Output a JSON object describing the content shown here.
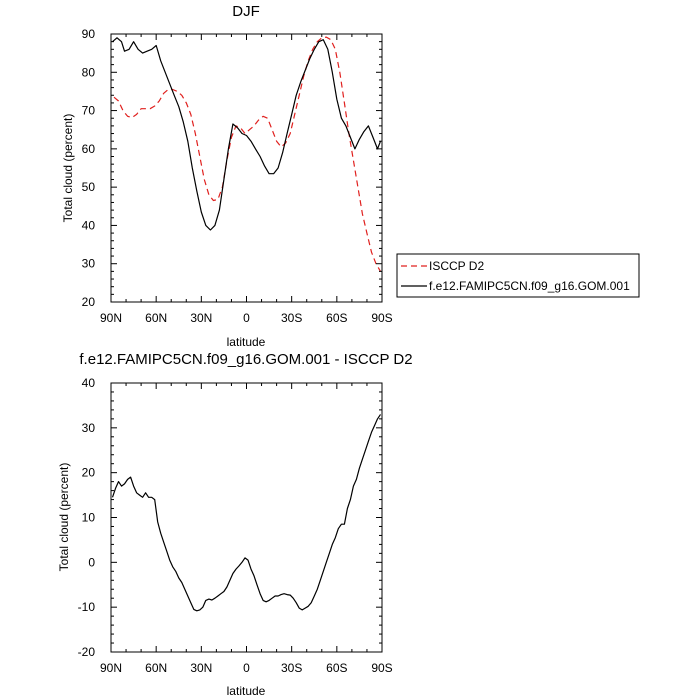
{
  "chart_data": [
    {
      "type": "line",
      "title": "DJF",
      "xlabel": "latitude",
      "ylabel": "Total cloud (percent)",
      "x_ticks": [
        -90,
        -60,
        -30,
        0,
        30,
        60,
        90
      ],
      "x_tick_labels": [
        "90N",
        "60N",
        "30N",
        "0",
        "30S",
        "60S",
        "90S"
      ],
      "ylim": [
        20,
        90
      ],
      "y_ticks": [
        20,
        30,
        40,
        50,
        60,
        70,
        80,
        90
      ],
      "xlim": [
        -90,
        90
      ],
      "legend": [
        "ISCCP D2",
        "f.e12.FAMIPC5CN.f09_g16.GOM.001"
      ],
      "series": [
        {
          "name": "ISCCP D2",
          "color": "#e0201e",
          "dash": true,
          "x": [
            -88,
            -85,
            -82,
            -79,
            -76,
            -73,
            -70,
            -67,
            -64,
            -61,
            -58,
            -55,
            -52,
            -49,
            -46,
            -43,
            -40,
            -37,
            -34,
            -31,
            -28,
            -25,
            -22,
            -19,
            -16,
            -13,
            -10,
            -7,
            -4,
            -1,
            2,
            5,
            8,
            11,
            14,
            17,
            20,
            23,
            26,
            29,
            32,
            35,
            38,
            41,
            44,
            47,
            50,
            53,
            56,
            59,
            62,
            65,
            68,
            71,
            74,
            77,
            80,
            83,
            86,
            89
          ],
          "values": [
            73.5,
            72.5,
            70,
            68.5,
            68.2,
            69,
            70.5,
            70.5,
            70.5,
            71.2,
            72.5,
            74.5,
            75.5,
            75.5,
            75,
            74,
            72,
            69,
            64,
            58,
            52,
            48,
            46.5,
            46.8,
            50,
            57,
            63,
            66,
            65.5,
            64,
            65,
            66,
            67.5,
            68.5,
            68,
            65,
            62,
            60.5,
            61.5,
            64,
            69,
            74,
            79,
            83,
            86,
            88,
            89,
            89.2,
            88.5,
            86,
            80,
            72,
            64,
            57,
            50,
            43,
            38,
            33,
            30,
            28
          ]
        },
        {
          "name": "f.e12.FAMIPC5CN.f09_g16.GOM.001",
          "color": "#000000",
          "dash": false,
          "x": [
            -89,
            -86,
            -83,
            -81,
            -78,
            -75,
            -72,
            -69,
            -66,
            -63,
            -60,
            -57,
            -54,
            -51,
            -48,
            -45,
            -42,
            -39,
            -36,
            -33,
            -30,
            -27,
            -24,
            -21,
            -18,
            -15,
            -12,
            -9,
            -6,
            -3,
            0,
            3,
            6,
            9,
            12,
            15,
            18,
            21,
            24,
            27,
            30,
            33,
            36,
            39,
            42,
            45,
            48,
            51,
            54,
            57,
            60,
            63,
            66,
            69,
            72,
            75,
            78,
            81,
            84,
            87,
            89
          ],
          "values": [
            88,
            89,
            88,
            85.5,
            86,
            88,
            86,
            85,
            85.5,
            86,
            87,
            83,
            80,
            77,
            74,
            71,
            67,
            62,
            55,
            49,
            43.5,
            40,
            38.8,
            40,
            44,
            52,
            60,
            66.5,
            65.5,
            64,
            63.5,
            62,
            60,
            58,
            55.5,
            53.5,
            53.5,
            55,
            59,
            64,
            69,
            74,
            77.5,
            80.5,
            83.5,
            86,
            88,
            88.5,
            86,
            80,
            73,
            68,
            66,
            63,
            60,
            62.5,
            64.5,
            66,
            63,
            60,
            62
          ]
        }
      ]
    },
    {
      "type": "line",
      "title": "f.e12.FAMIPC5CN.f09_g16.GOM.001 - ISCCP D2",
      "xlabel": "latitude",
      "ylabel": "Total cloud (percent)",
      "x_ticks": [
        -90,
        -60,
        -30,
        0,
        30,
        60,
        90
      ],
      "x_tick_labels": [
        "90N",
        "60N",
        "30N",
        "0",
        "30S",
        "60S",
        "90S"
      ],
      "ylim": [
        -20,
        40
      ],
      "y_ticks": [
        -20,
        -10,
        0,
        10,
        20,
        30,
        40
      ],
      "xlim": [
        -90,
        90
      ],
      "series": [
        {
          "name": "f.e12.FAMIPC5CN.f09_g16.GOM.001 - ISCCP D2",
          "color": "#000000",
          "dash": false,
          "x": [
            -89,
            -87,
            -85,
            -83,
            -81,
            -79,
            -77,
            -75,
            -73,
            -71,
            -69,
            -67,
            -65,
            -63,
            -61,
            -59,
            -57,
            -55,
            -53,
            -51,
            -49,
            -47,
            -45,
            -43,
            -41,
            -39,
            -37,
            -35,
            -33,
            -31,
            -29,
            -27,
            -25,
            -23,
            -21,
            -19,
            -17,
            -15,
            -13,
            -11,
            -9,
            -7,
            -5,
            -3,
            -1,
            1,
            3,
            5,
            7,
            9,
            11,
            13,
            15,
            17,
            19,
            21,
            23,
            25,
            27,
            29,
            31,
            33,
            35,
            37,
            39,
            41,
            43,
            45,
            47,
            49,
            51,
            53,
            55,
            57,
            59,
            61,
            63,
            65,
            67,
            69,
            71,
            73,
            75,
            77,
            79,
            81,
            83,
            85,
            87,
            89
          ],
          "values": [
            14.5,
            16.5,
            18,
            17,
            17.5,
            18.5,
            19,
            17,
            15.5,
            15,
            14.5,
            15.5,
            14.5,
            14.5,
            14,
            9,
            6.5,
            4.5,
            2.5,
            0.5,
            -1,
            -2,
            -3.5,
            -4.5,
            -6,
            -7.5,
            -9,
            -10.5,
            -10.8,
            -10.6,
            -10,
            -8.5,
            -8.2,
            -8.4,
            -8,
            -7.5,
            -7,
            -6.5,
            -5.5,
            -4,
            -2.5,
            -1.5,
            -0.8,
            0,
            1,
            0.5,
            -1.5,
            -3,
            -5,
            -7,
            -8.5,
            -8.8,
            -8.5,
            -8,
            -7.5,
            -7.5,
            -7.2,
            -7,
            -7.2,
            -7.3,
            -8,
            -9,
            -10.2,
            -10.6,
            -10.2,
            -9.8,
            -9,
            -7.5,
            -6,
            -4,
            -2,
            0,
            2,
            4,
            5.5,
            7.5,
            8.5,
            8.5,
            12,
            14,
            17,
            18.5,
            21,
            23,
            25,
            27,
            29,
            30.5,
            32,
            33
          ]
        }
      ]
    }
  ]
}
